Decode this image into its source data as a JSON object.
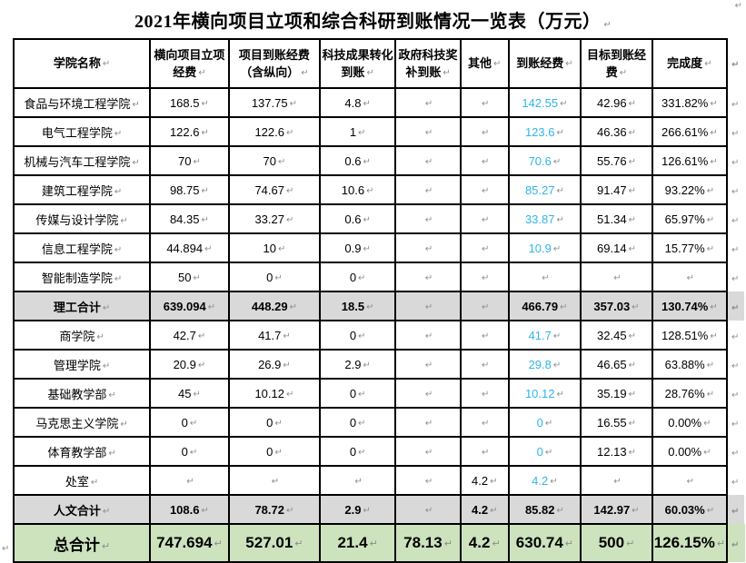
{
  "page": {
    "title": "2021年横向项目立项和综合科研到账情况一览表（万元）",
    "marker_glyph": "↵"
  },
  "colors": {
    "accent_blue": "#2fb5e9",
    "subtotal_row_bg": "#d9d9d9",
    "total_row_bg": "#cde3be",
    "marker_gray": "#8d8d8d"
  },
  "table": {
    "headers": [
      "学院名称",
      "横向项目立项经费",
      "项目到账经费（含纵向）",
      "科技成果转化到账",
      "政府科技奖补到账",
      "其他",
      "到账经费",
      "目标到账经费",
      "完成度"
    ],
    "accent_value_column_index": 5,
    "rows": [
      {
        "label": "食品与环境工程学院",
        "style": "normal",
        "values": [
          "168.5",
          "137.75",
          "4.8",
          "",
          "",
          "142.55",
          "42.96",
          "331.82%"
        ]
      },
      {
        "label": "电气工程学院",
        "style": "normal",
        "values": [
          "122.6",
          "122.6",
          "1",
          "",
          "",
          "123.6",
          "46.36",
          "266.61%"
        ]
      },
      {
        "label": "机械与汽车工程学院",
        "style": "normal",
        "values": [
          "70",
          "70",
          "0.6",
          "",
          "",
          "70.6",
          "55.76",
          "126.61%"
        ]
      },
      {
        "label": "建筑工程学院",
        "style": "normal",
        "values": [
          "98.75",
          "74.67",
          "10.6",
          "",
          "",
          "85.27",
          "91.47",
          "93.22%"
        ]
      },
      {
        "label": "传媒与设计学院",
        "style": "normal",
        "values": [
          "84.35",
          "33.27",
          "0.6",
          "",
          "",
          "33.87",
          "51.34",
          "65.97%"
        ]
      },
      {
        "label": "信息工程学院",
        "style": "normal",
        "values": [
          "44.894",
          "10",
          "0.9",
          "",
          "",
          "10.9",
          "69.14",
          "15.77%"
        ]
      },
      {
        "label": "智能制造学院",
        "style": "normal",
        "values": [
          "50",
          "0",
          "0",
          "",
          "",
          "",
          "",
          ""
        ]
      },
      {
        "label": "理工合计",
        "style": "subtotal",
        "values": [
          "639.094",
          "448.29",
          "18.5",
          "",
          "",
          "466.79",
          "357.03",
          "130.74%"
        ]
      },
      {
        "label": "商学院",
        "style": "normal",
        "values": [
          "42.7",
          "41.7",
          "0",
          "",
          "",
          "41.7",
          "32.45",
          "128.51%"
        ]
      },
      {
        "label": "管理学院",
        "style": "normal",
        "values": [
          "20.9",
          "26.9",
          "2.9",
          "",
          "",
          "29.8",
          "46.65",
          "63.88%"
        ]
      },
      {
        "label": "基础教学部",
        "style": "normal",
        "values": [
          "45",
          "10.12",
          "0",
          "",
          "",
          "10.12",
          "35.19",
          "28.76%"
        ]
      },
      {
        "label": "马克思主义学院",
        "style": "normal",
        "values": [
          "0",
          "0",
          "0",
          "",
          "",
          "0",
          "16.55",
          "0.00%"
        ]
      },
      {
        "label": "体育教学部",
        "style": "normal",
        "values": [
          "0",
          "0",
          "0",
          "",
          "",
          "0",
          "12.13",
          "0.00%"
        ]
      },
      {
        "label": "处室",
        "style": "normal",
        "values": [
          "",
          "",
          "",
          "",
          "4.2",
          "4.2",
          "",
          ""
        ]
      },
      {
        "label": "人文合计",
        "style": "subtotal",
        "values": [
          "108.6",
          "78.72",
          "2.9",
          "",
          "4.2",
          "85.82",
          "142.97",
          "60.03%"
        ]
      },
      {
        "label": "总合计",
        "style": "total",
        "values": [
          "747.694",
          "527.01",
          "21.4",
          "78.13",
          "4.2",
          "630.74",
          "500",
          "126.15%"
        ]
      }
    ]
  }
}
